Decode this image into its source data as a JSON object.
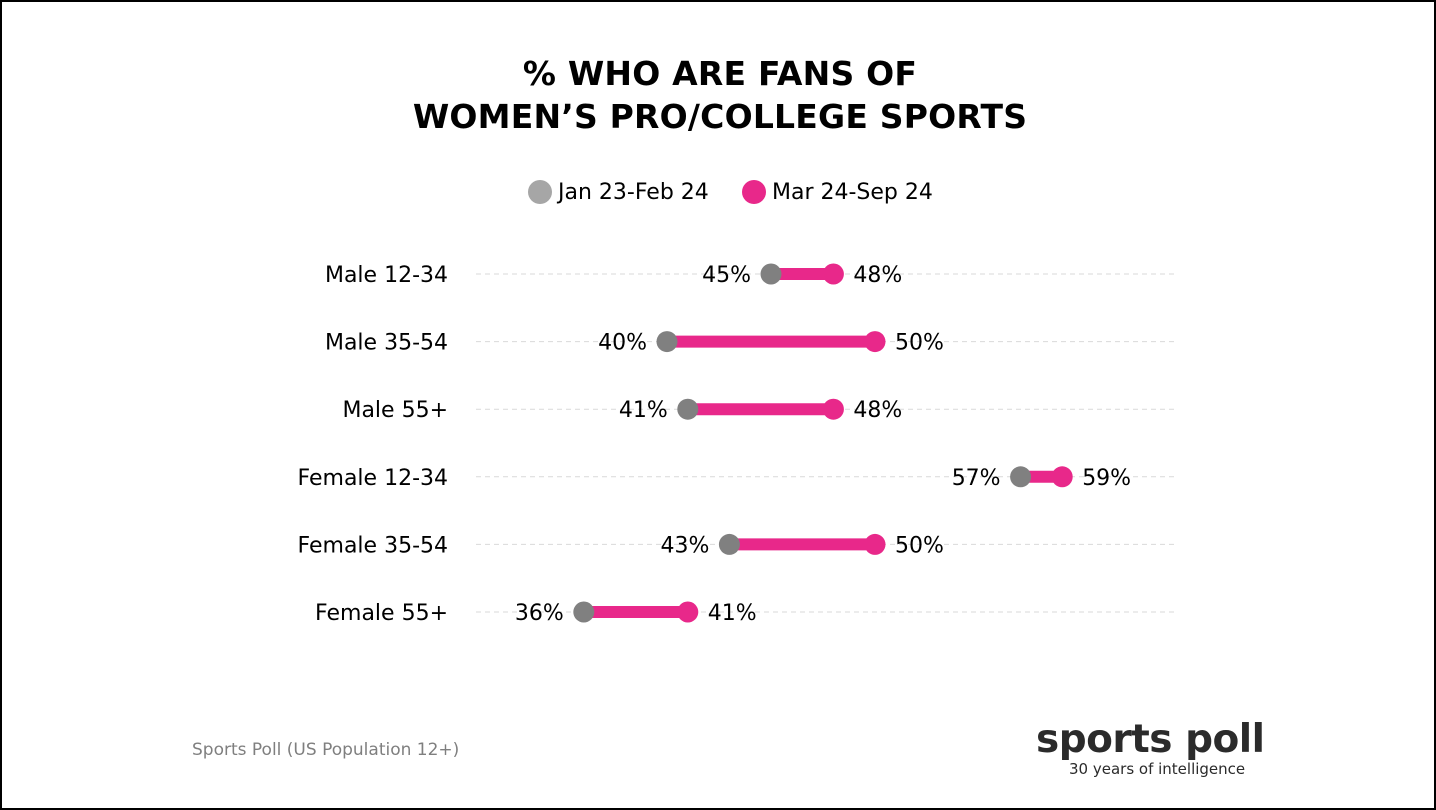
{
  "chart_data": {
    "type": "dumbbell",
    "title_lines": [
      "% WHO ARE FANS OF",
      "WOMEN’S PRO/COLLEGE SPORTS"
    ],
    "categories": [
      "Male 12-34",
      "Male 35-54",
      "Male 55+",
      "Female 12-34",
      "Female 35-54",
      "Female 55+"
    ],
    "series": [
      {
        "name": "Jan 23-Feb 24",
        "color": "#808080",
        "values": [
          45,
          40,
          41,
          57,
          43,
          36
        ],
        "labels": [
          "45%",
          "40%",
          "41%",
          "57%",
          "43%",
          "36%"
        ]
      },
      {
        "name": "Mar 24-Sep 24",
        "color": "#e8288a",
        "values": [
          48,
          50,
          48,
          59,
          50,
          41
        ],
        "labels": [
          "48%",
          "50%",
          "48%",
          "59%",
          "50%",
          "41%"
        ]
      }
    ],
    "connector_color": "#e8288a",
    "legend_position": "top",
    "grid": "dashed horizontal guide per row"
  },
  "legend_colors": {
    "series1": "#a6a6a6",
    "series2": "#e8288a"
  },
  "footer": {
    "source": "Sports Poll (US Population 12+)"
  },
  "logo": {
    "main": "sports poll",
    "tagline": "30 years of intelligence"
  }
}
